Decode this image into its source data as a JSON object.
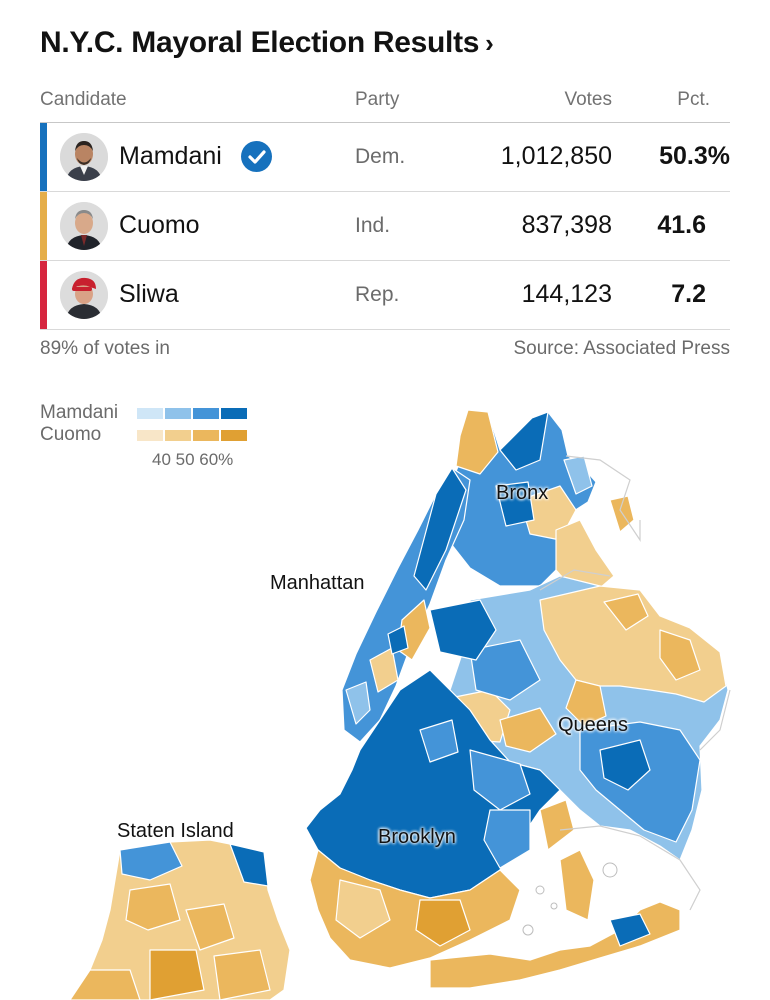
{
  "header": {
    "title": "N.Y.C. Mayoral Election Results",
    "chevron": "›"
  },
  "table": {
    "columns": {
      "candidate": "Candidate",
      "party": "Party",
      "votes": "Votes",
      "pct": "Pct."
    },
    "rows": [
      {
        "name": "Mamdani",
        "party": "Dem.",
        "votes": "1,012,850",
        "pct": "50.3%",
        "winner": true,
        "color": "#1671bd"
      },
      {
        "name": "Cuomo",
        "party": "Ind.",
        "votes": "837,398",
        "pct": "41.6",
        "winner": false,
        "color": "#e5ae4a"
      },
      {
        "name": "Sliwa",
        "party": "Rep.",
        "votes": "144,123",
        "pct": "7.2",
        "winner": false,
        "color": "#d6253e"
      }
    ],
    "footer": {
      "reporting": "89% of votes in",
      "source": "Source: Associated Press"
    }
  },
  "legend": {
    "mamdani_label": "Mamdani",
    "cuomo_label": "Cuomo",
    "ticks": "40 50 60%",
    "mamdani_colors": [
      "#cfe6f7",
      "#8fc2ea",
      "#4494d8",
      "#0a6cb7"
    ],
    "cuomo_colors": [
      "#f8e6c8",
      "#f2cf8e",
      "#ebb75d",
      "#e0a033"
    ]
  },
  "map": {
    "labels": {
      "bronx": "Bronx",
      "manhattan": "Manhattan",
      "queens": "Queens",
      "brooklyn": "Brooklyn",
      "staten_island": "Staten Island"
    }
  }
}
